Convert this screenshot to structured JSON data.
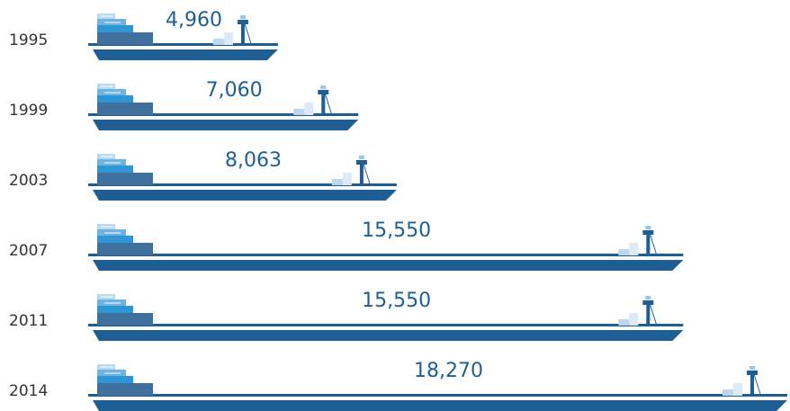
{
  "chart_data": {
    "type": "ship",
    "categories": [
      "1995",
      "1999",
      "2003",
      "2007",
      "2011",
      "2014"
    ],
    "values": [
      4960,
      7060,
      8063,
      15550,
      15550,
      18270
    ],
    "value_labels": [
      "4,960",
      "7,060",
      "8,063",
      "15,550",
      "15,550",
      "18,270"
    ],
    "color": "#1d5f95"
  }
}
